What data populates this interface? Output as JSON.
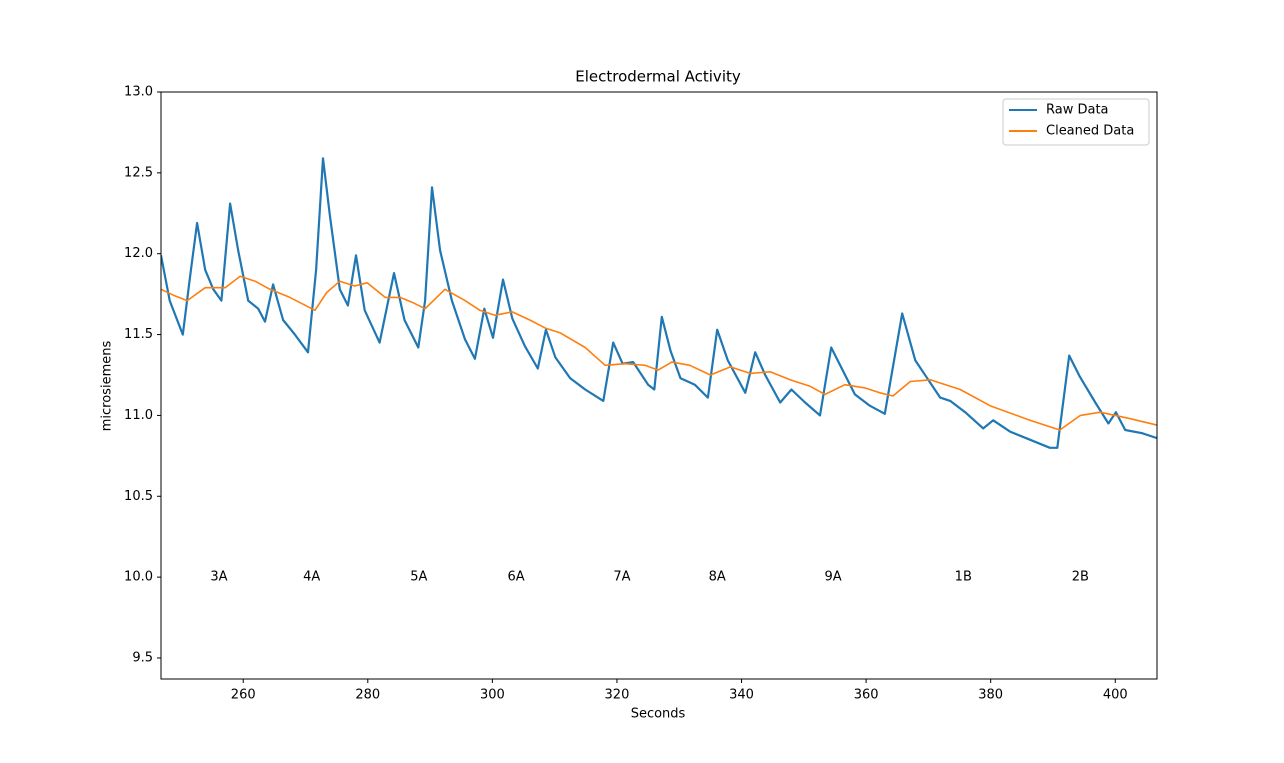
{
  "chart_data": {
    "type": "line",
    "title": "Electrodermal Activity",
    "x_label": "Seconds",
    "y_label": "microsiemens",
    "xlim": [
      246.8,
      406.7
    ],
    "ylim": [
      9.37,
      13.0
    ],
    "xticks": [
      260,
      280,
      300,
      320,
      340,
      360,
      380,
      400
    ],
    "yticks": [
      9.5,
      {
        "value": 10,
        "label": "10.0"
      },
      10.5,
      {
        "value": 11,
        "label": "11.0"
      },
      11.5,
      {
        "value": 12,
        "label": "12.0"
      },
      12.5,
      {
        "value": 13,
        "label": "13.0"
      }
    ],
    "grid": false,
    "legend": "upper right",
    "series": [
      {
        "name": "Raw Data",
        "color": "#1f77b4",
        "x": [
          246.8,
          248.2,
          250.3,
          251.5,
          252.6,
          253.9,
          255.2,
          256.5,
          257.9,
          259.2,
          260.8,
          262.4,
          263.5,
          264.8,
          266.4,
          268.3,
          270.4,
          271.7,
          272.8,
          273.9,
          275.5,
          276.8,
          278.1,
          279.5,
          281.9,
          284.2,
          285.9,
          288.1,
          289.2,
          290.3,
          291.6,
          293.5,
          295.6,
          297.2,
          298.7,
          300.1,
          301.7,
          303.2,
          305.2,
          307.3,
          308.6,
          310.1,
          312.5,
          314.9,
          317.8,
          319.4,
          320.9,
          322.6,
          325.0,
          326.0,
          327.2,
          328.6,
          330.2,
          332.5,
          334.6,
          336.1,
          337.8,
          340.6,
          342.2,
          343.8,
          346.2,
          348.0,
          350.2,
          352.6,
          354.4,
          356.1,
          358.2,
          360.6,
          363.0,
          365.8,
          367.9,
          369.8,
          371.9,
          373.5,
          375.9,
          378.8,
          380.4,
          383.1,
          386.3,
          389.5,
          390.7,
          392.6,
          394.3,
          396.8,
          398.9,
          400.1,
          401.6,
          404.3,
          406.7
        ],
        "values": [
          11.99,
          11.71,
          11.5,
          11.87,
          12.19,
          11.9,
          11.78,
          11.71,
          12.31,
          12.02,
          11.71,
          11.66,
          11.58,
          11.81,
          11.59,
          11.5,
          11.39,
          11.9,
          12.59,
          12.24,
          11.78,
          11.68,
          11.99,
          11.65,
          11.45,
          11.88,
          11.59,
          11.42,
          11.71,
          12.41,
          12.02,
          11.71,
          11.47,
          11.35,
          11.66,
          11.48,
          11.84,
          11.6,
          11.43,
          11.29,
          11.53,
          11.36,
          11.23,
          11.16,
          11.09,
          11.45,
          11.32,
          11.33,
          11.19,
          11.16,
          11.61,
          11.4,
          11.23,
          11.19,
          11.11,
          11.53,
          11.34,
          11.14,
          11.39,
          11.25,
          11.08,
          11.16,
          11.08,
          11.0,
          11.42,
          11.29,
          11.13,
          11.06,
          11.01,
          11.63,
          11.34,
          11.23,
          11.11,
          11.09,
          11.02,
          10.92,
          10.97,
          10.9,
          10.85,
          10.8,
          10.8,
          11.37,
          11.24,
          11.08,
          10.95,
          11.02,
          10.91,
          10.89,
          10.86
        ]
      },
      {
        "name": "Cleaned Data",
        "color": "#ff7f0e",
        "x": [
          246.8,
          249.0,
          251.0,
          253.9,
          257.1,
          259.5,
          261.9,
          264.3,
          267.5,
          271.5,
          273.4,
          275.5,
          277.9,
          279.9,
          282.8,
          285.2,
          287.1,
          289.2,
          292.4,
          295.6,
          298.0,
          300.4,
          303.2,
          306.0,
          308.5,
          310.9,
          314.9,
          318.1,
          321.3,
          324.5,
          326.6,
          328.8,
          331.7,
          335.0,
          338.2,
          341.4,
          344.6,
          347.8,
          351.0,
          353.4,
          356.6,
          359.8,
          362.2,
          364.3,
          367.1,
          370.3,
          375.1,
          379.9,
          386.3,
          391.1,
          394.4,
          397.6,
          402.4,
          406.7
        ],
        "values": [
          11.78,
          11.74,
          11.71,
          11.79,
          11.79,
          11.86,
          11.83,
          11.78,
          11.73,
          11.65,
          11.76,
          11.83,
          11.8,
          11.82,
          11.73,
          11.73,
          11.7,
          11.66,
          11.78,
          11.71,
          11.65,
          11.62,
          11.64,
          11.59,
          11.54,
          11.51,
          11.42,
          11.31,
          11.32,
          11.31,
          11.28,
          11.33,
          11.31,
          11.25,
          11.3,
          11.26,
          11.27,
          11.22,
          11.18,
          11.13,
          11.19,
          11.17,
          11.14,
          11.12,
          11.21,
          11.22,
          11.16,
          11.06,
          10.97,
          10.91,
          11.0,
          11.02,
          10.98,
          10.94
        ]
      }
    ],
    "annotations": [
      {
        "text": "3A",
        "x": 256.1,
        "y": 10.0
      },
      {
        "text": "4A",
        "x": 271.0,
        "y": 10.0
      },
      {
        "text": "5A",
        "x": 288.2,
        "y": 10.0
      },
      {
        "text": "6A",
        "x": 303.8,
        "y": 10.0
      },
      {
        "text": "7A",
        "x": 320.8,
        "y": 10.0
      },
      {
        "text": "8A",
        "x": 336.1,
        "y": 10.0
      },
      {
        "text": "9A",
        "x": 354.7,
        "y": 10.0
      },
      {
        "text": "1B",
        "x": 375.6,
        "y": 10.0
      },
      {
        "text": "2B",
        "x": 394.4,
        "y": 10.0
      }
    ]
  }
}
